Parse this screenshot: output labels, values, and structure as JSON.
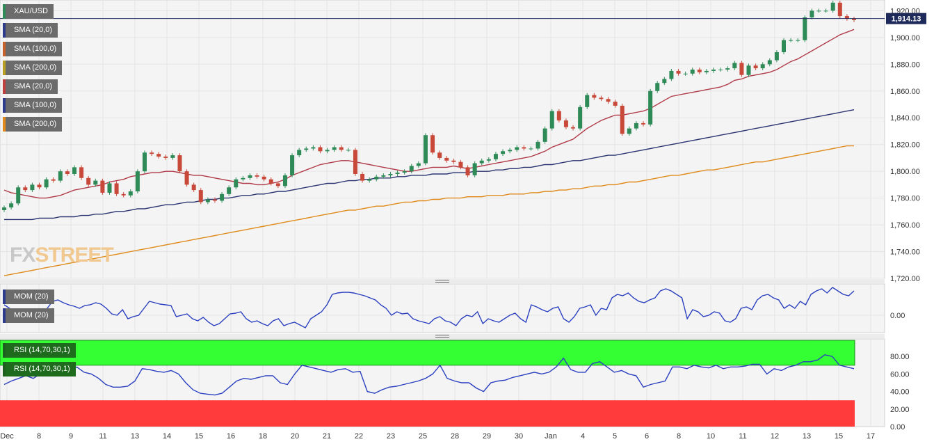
{
  "window": {
    "symbol": "XAU/USD",
    "current_price_label": "1,914.13"
  },
  "legend_main": [
    {
      "label": "SMA (20,0)",
      "color": "#2e3a8c"
    },
    {
      "label": "SMA (100,0)",
      "color": "#c8602a"
    },
    {
      "label": "SMA (200,0)",
      "color": "#b8a020"
    },
    {
      "label": "SMA (20,0)",
      "color": "#c04040"
    },
    {
      "label": "SMA (100,0)",
      "color": "#2e3a8c"
    },
    {
      "label": "SMA (200,0)",
      "color": "#e08a1a"
    }
  ],
  "legend_mom": [
    {
      "label": "MOM (20)",
      "color": "#2e3a8c"
    },
    {
      "label": "MOM (20)",
      "color": "#2e3a8c"
    }
  ],
  "legend_rsi": [
    {
      "label": "RSI (14,70,30,1)",
      "color": "#1e5e1e"
    },
    {
      "label": "RSI (14,70,30,1)",
      "color": "#1e5e1e"
    }
  ],
  "watermark": {
    "part1": "FX",
    "part2": "STREET"
  },
  "colors": {
    "up": "#2e8b57",
    "down": "#c8483a",
    "sma20": "#b03a48",
    "sma100": "#2a3470",
    "sma200": "#e08a1a",
    "mom": "#2a3fbf",
    "rsi": "#2a3fbf",
    "overbought": "#33ff33",
    "oversold": "#ff3b3b"
  },
  "chart_data": [
    {
      "type": "candlestick",
      "title": "XAU/USD",
      "ylim": [
        1720,
        1928
      ],
      "yticks": [
        "1,720.00",
        "1,740.00",
        "1,760.00",
        "1,780.00",
        "1,800.00",
        "1,820.00",
        "1,840.00",
        "1,860.00",
        "1,880.00",
        "1,900.00",
        "1,920.00"
      ],
      "ytick_values": [
        1720,
        1740,
        1760,
        1780,
        1800,
        1820,
        1840,
        1860,
        1880,
        1900,
        1920
      ],
      "x_labels": [
        "Dec",
        "8",
        "9",
        "11",
        "13",
        "14",
        "15",
        "16",
        "18",
        "20",
        "21",
        "22",
        "23",
        "25",
        "28",
        "29",
        "30",
        "Jan",
        "4",
        "5",
        "6",
        "8",
        "10",
        "11",
        "12",
        "13",
        "15",
        "17"
      ],
      "current_price": 1914.13,
      "close": [
        1773,
        1776,
        1788,
        1786,
        1790,
        1788,
        1794,
        1793,
        1800,
        1798,
        1803,
        1795,
        1790,
        1793,
        1784,
        1791,
        1783,
        1782,
        1785,
        1800,
        1814,
        1813,
        1811,
        1810,
        1812,
        1800,
        1790,
        1786,
        1777,
        1779,
        1778,
        1783,
        1788,
        1794,
        1795,
        1797,
        1796,
        1794,
        1791,
        1789,
        1797,
        1812,
        1816,
        1817,
        1818,
        1815,
        1816,
        1818,
        1816,
        1816,
        1798,
        1793,
        1794,
        1796,
        1797,
        1798,
        1799,
        1800,
        1804,
        1806,
        1827,
        1814,
        1810,
        1808,
        1807,
        1803,
        1797,
        1806,
        1808,
        1809,
        1813,
        1815,
        1816,
        1818,
        1817,
        1817,
        1822,
        1832,
        1845,
        1838,
        1833,
        1832,
        1848,
        1857,
        1855,
        1854,
        1852,
        1849,
        1828,
        1832,
        1836,
        1835,
        1860,
        1866,
        1869,
        1875,
        1873,
        1873,
        1876,
        1874,
        1875,
        1876,
        1876,
        1877,
        1881,
        1872,
        1879,
        1877,
        1880,
        1883,
        1889,
        1898,
        1898,
        1898,
        1915,
        1920,
        1920,
        1920,
        1926,
        1916,
        1914,
        1913
      ]
    },
    {
      "type": "line",
      "name": "SMA (20,0)",
      "values": [
        1786,
        1784,
        1783,
        1782,
        1781,
        1780,
        1780,
        1781,
        1782,
        1784,
        1786,
        1787,
        1788,
        1789,
        1790,
        1792,
        1793,
        1794,
        1796,
        1797,
        1798,
        1799,
        1799,
        1800,
        1800,
        1799,
        1798,
        1797,
        1797,
        1796,
        1795,
        1794,
        1793,
        1792,
        1791,
        1791,
        1790,
        1790,
        1791,
        1792,
        1794,
        1797,
        1799,
        1801,
        1803,
        1805,
        1806,
        1807,
        1808,
        1808,
        1807,
        1806,
        1805,
        1804,
        1803,
        1802,
        1801,
        1800,
        1800,
        1801,
        1802,
        1803,
        1803,
        1803,
        1804,
        1803,
        1802,
        1803,
        1804,
        1805,
        1806,
        1807,
        1808,
        1809,
        1810,
        1811,
        1813,
        1815,
        1818,
        1820,
        1822,
        1824,
        1828,
        1832,
        1835,
        1838,
        1840,
        1842,
        1842,
        1843,
        1844,
        1845,
        1847,
        1850,
        1853,
        1856,
        1857,
        1858,
        1859,
        1860,
        1861,
        1862,
        1863,
        1865,
        1868,
        1869,
        1871,
        1872,
        1873,
        1874,
        1876,
        1879,
        1882,
        1884,
        1887,
        1890,
        1893,
        1896,
        1899,
        1902,
        1904,
        1906
      ]
    },
    {
      "type": "line",
      "name": "SMA (100,0)",
      "values": [
        1764,
        1764,
        1764,
        1764,
        1764,
        1765,
        1765,
        1765,
        1766,
        1766,
        1766,
        1767,
        1767,
        1768,
        1768,
        1769,
        1770,
        1770,
        1771,
        1772,
        1772,
        1773,
        1774,
        1775,
        1775,
        1776,
        1777,
        1777,
        1778,
        1779,
        1779,
        1780,
        1780,
        1781,
        1782,
        1782,
        1783,
        1783,
        1784,
        1785,
        1785,
        1786,
        1787,
        1788,
        1789,
        1790,
        1791,
        1791,
        1792,
        1793,
        1793,
        1794,
        1794,
        1795,
        1795,
        1795,
        1796,
        1796,
        1797,
        1797,
        1797,
        1798,
        1798,
        1798,
        1799,
        1799,
        1799,
        1800,
        1800,
        1800,
        1801,
        1801,
        1802,
        1802,
        1803,
        1803,
        1804,
        1805,
        1805,
        1806,
        1807,
        1808,
        1808,
        1809,
        1810,
        1811,
        1812,
        1812,
        1813,
        1814,
        1815,
        1816,
        1817,
        1818,
        1819,
        1820,
        1821,
        1822,
        1823,
        1824,
        1825,
        1826,
        1827,
        1828,
        1829,
        1830,
        1831,
        1832,
        1833,
        1834,
        1835,
        1836,
        1837,
        1838,
        1839,
        1840,
        1841,
        1842,
        1843,
        1844,
        1845,
        1846
      ]
    },
    {
      "type": "line",
      "name": "SMA (200,0)",
      "values": [
        1722,
        1723,
        1724,
        1725,
        1726,
        1727,
        1728,
        1729,
        1730,
        1731,
        1732,
        1733,
        1734,
        1735,
        1736,
        1737,
        1738,
        1739,
        1740,
        1741,
        1742,
        1743,
        1744,
        1745,
        1746,
        1747,
        1748,
        1749,
        1750,
        1751,
        1752,
        1753,
        1754,
        1755,
        1756,
        1757,
        1758,
        1759,
        1760,
        1761,
        1762,
        1763,
        1764,
        1765,
        1766,
        1767,
        1768,
        1769,
        1770,
        1771,
        1771,
        1772,
        1773,
        1774,
        1774,
        1775,
        1776,
        1777,
        1777,
        1778,
        1778,
        1779,
        1779,
        1780,
        1780,
        1780,
        1781,
        1781,
        1781,
        1782,
        1782,
        1782,
        1783,
        1783,
        1783,
        1784,
        1784,
        1785,
        1785,
        1786,
        1786,
        1787,
        1787,
        1788,
        1789,
        1789,
        1790,
        1790,
        1791,
        1792,
        1792,
        1793,
        1794,
        1795,
        1796,
        1797,
        1797,
        1798,
        1799,
        1800,
        1801,
        1801,
        1802,
        1803,
        1804,
        1805,
        1806,
        1807,
        1807,
        1808,
        1809,
        1810,
        1811,
        1812,
        1813,
        1814,
        1815,
        1816,
        1817,
        1818,
        1819,
        1819
      ]
    },
    {
      "type": "line",
      "title": "MOM (20)",
      "ylim": [
        -25,
        45
      ],
      "yticks": [
        "0.00"
      ],
      "ytick_values": [
        0
      ],
      "values": [
        15,
        10,
        5,
        0,
        -5,
        -8,
        5,
        0,
        10,
        20,
        22,
        18,
        15,
        13,
        10,
        14,
        15,
        18,
        16,
        10,
        2,
        0,
        8,
        -5,
        -2,
        0,
        10,
        20,
        18,
        16,
        15,
        14,
        -2,
        0,
        2,
        -5,
        -8,
        -3,
        -10,
        -15,
        -12,
        -5,
        2,
        3,
        5,
        -5,
        -10,
        -8,
        -12,
        -15,
        -8,
        -5,
        -15,
        -12,
        -10,
        -14,
        -18,
        -5,
        0,
        5,
        15,
        30,
        32,
        33,
        33,
        32,
        30,
        28,
        25,
        22,
        15,
        10,
        0,
        5,
        2,
        3,
        -5,
        -8,
        -10,
        -12,
        -5,
        -2,
        -8,
        -10,
        -15,
        -5,
        0,
        -2,
        5,
        -12,
        -5,
        -8,
        -10,
        -5,
        0,
        3,
        -5,
        -10,
        15,
        12,
        8,
        5,
        10,
        12,
        -5,
        -10,
        -2,
        10,
        12,
        15,
        0,
        10,
        8,
        25,
        30,
        28,
        32,
        25,
        20,
        18,
        22,
        25,
        35,
        38,
        35,
        30,
        25,
        -5,
        8,
        5,
        -2,
        0,
        5,
        3,
        -8,
        -10,
        -5,
        10,
        12,
        8,
        22,
        28,
        30,
        25,
        22,
        10,
        15,
        10,
        20,
        15,
        30,
        35,
        38,
        32,
        40,
        35,
        30,
        28,
        35
      ]
    },
    {
      "type": "line",
      "title": "RSI (14,70,30,1)",
      "ylim": [
        0,
        100
      ],
      "overbought": 70,
      "oversold": 30,
      "yticks": [
        "0.00",
        "20.00",
        "40.00",
        "60.00",
        "80.00"
      ],
      "ytick_values": [
        0,
        20,
        40,
        60,
        80
      ],
      "values": [
        48,
        52,
        55,
        58,
        55,
        60,
        62,
        65,
        60,
        64,
        68,
        62,
        60,
        55,
        48,
        45,
        45,
        46,
        52,
        66,
        65,
        63,
        62,
        64,
        60,
        50,
        42,
        38,
        37,
        36,
        38,
        45,
        52,
        55,
        54,
        56,
        58,
        58,
        50,
        48,
        60,
        70,
        68,
        66,
        64,
        62,
        65,
        66,
        62,
        63,
        40,
        38,
        42,
        45,
        46,
        48,
        50,
        52,
        55,
        60,
        70,
        55,
        52,
        50,
        50,
        44,
        40,
        50,
        52,
        53,
        56,
        58,
        60,
        62,
        60,
        62,
        68,
        78,
        65,
        62,
        62,
        72,
        74,
        68,
        62,
        64,
        60,
        58,
        45,
        48,
        50,
        52,
        68,
        68,
        66,
        70,
        68,
        67,
        70,
        66,
        68,
        68,
        69,
        71,
        71,
        60,
        66,
        64,
        68,
        70,
        74,
        74,
        76,
        82,
        80,
        70,
        68,
        66
      ]
    }
  ]
}
